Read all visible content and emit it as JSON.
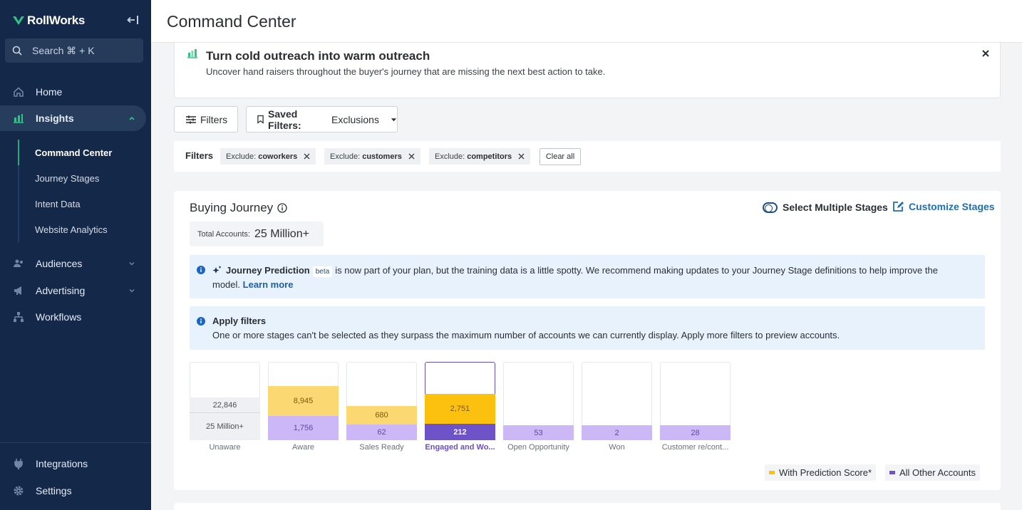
{
  "sidebar": {
    "brand": "RollWorks",
    "search_placeholder": "Search ⌘ + K",
    "nav": {
      "home": "Home",
      "insights": "Insights",
      "audiences": "Audiences",
      "advertising": "Advertising",
      "workflows": "Workflows",
      "integrations": "Integrations",
      "settings": "Settings"
    },
    "subnav": [
      "Command Center",
      "Journey Stages",
      "Intent Data",
      "Website Analytics"
    ]
  },
  "header": {
    "title": "Command Center"
  },
  "banner": {
    "title": "Turn cold outreach into warm outreach",
    "description": "Uncover hand raisers throughout the buyer's journey that are missing the next best action to take."
  },
  "toolbar": {
    "filters_label": "Filters",
    "saved_filters_key": "Saved Filters:",
    "saved_filters_value": "Exclusions"
  },
  "active_filters": {
    "label": "Filters",
    "chips": [
      {
        "prefix": "Exclude:",
        "value": "coworkers"
      },
      {
        "prefix": "Exclude:",
        "value": "customers"
      },
      {
        "prefix": "Exclude:",
        "value": "competitors"
      }
    ],
    "clear_all": "Clear all"
  },
  "journey": {
    "title": "Buying Journey",
    "select_multiple": "Select Multiple Stages",
    "customize": "Customize Stages",
    "total_label": "Total Accounts:",
    "total_value": "25 Million+",
    "prediction_alert": {
      "title": "Journey Prediction",
      "badge": "beta",
      "text": "is now part of your plan, but the training data is a little spotty. We recommend making updates to your Journey Stage definitions to help improve the model.",
      "link": "Learn more"
    },
    "filters_alert": {
      "title": "Apply filters",
      "text": "One or more stages can't be selected as they surpass the maximum number of accounts we can currently display. Apply more filters to preview accounts."
    },
    "legend": {
      "prediction": "With Prediction Score*",
      "other": "All Other Accounts"
    },
    "colors": {
      "prediction": "#fcd873",
      "prediction_selected": "#fcc10f",
      "other": "#cdb8f7",
      "other_selected": "#6e52c8",
      "disabled": "#eef0f3"
    }
  },
  "chart_data": {
    "type": "bar",
    "categories": [
      "Unaware",
      "Aware",
      "Sales Ready",
      "Engaged and Wo...",
      "Open Opportunity",
      "Won",
      "Customer re/cont..."
    ],
    "series": [
      {
        "name": "With Prediction Score*",
        "values": [
          22846,
          8945,
          680,
          2751,
          null,
          null,
          null
        ],
        "labels": [
          "22,846",
          "8,945",
          "680",
          "2,751",
          "",
          "",
          ""
        ]
      },
      {
        "name": "All Other Accounts",
        "values": [
          null,
          1756,
          62,
          212,
          53,
          2,
          28
        ],
        "labels": [
          "25 Million+",
          "1,756",
          "62",
          "212",
          "53",
          "2",
          "28"
        ]
      }
    ],
    "selected_category": "Engaged and Wo..."
  }
}
